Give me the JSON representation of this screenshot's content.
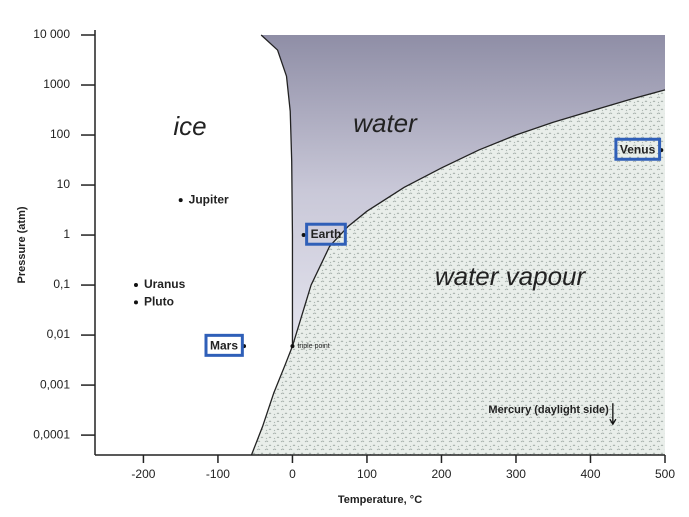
{
  "chart_data": {
    "type": "scatter",
    "x_label": "Temperature, °C",
    "y_label": "Pressure (atm)",
    "xlim": [
      -265,
      500
    ],
    "xticks": [
      -200,
      -100,
      0,
      100,
      200,
      300,
      400,
      500
    ],
    "ylim": [
      4e-05,
      10000
    ],
    "log_y": true,
    "yticks": [
      {
        "value": 10000,
        "label": "10 000"
      },
      1000,
      100,
      10,
      1,
      {
        "value": 0.1,
        "label": "0,1"
      },
      {
        "value": 0.01,
        "label": "0,01"
      },
      {
        "value": 0.001,
        "label": "0,001"
      },
      {
        "value": 0.0001,
        "label": "0,0001"
      }
    ],
    "regions": [
      "ice",
      "water",
      "water vapour"
    ],
    "points": [
      {
        "label": "Jupiter",
        "x": -150,
        "y": 5
      },
      {
        "label": "Uranus",
        "x": -210,
        "y": 0.1
      },
      {
        "label": "Pluto",
        "x": -210,
        "y": 0.045
      },
      {
        "label": "Mars",
        "x": -65,
        "y": 0.006
      },
      {
        "label": "Earth",
        "x": 15,
        "y": 1
      },
      {
        "label": "Venus",
        "x": 495,
        "y": 50
      },
      {
        "label": "triple point",
        "x": 0.01,
        "y": 0.006
      }
    ],
    "arrow": {
      "label": "Mercury (daylight side)",
      "x": 430,
      "y": 0.00025
    },
    "curves": [
      {
        "x": [
          -55,
          -40,
          -25,
          -10,
          0.01,
          25,
          50,
          75,
          100,
          150,
          200,
          250,
          300,
          350,
          400,
          450,
          500
        ],
        "y": [
          4e-05,
          0.00015,
          0.0007,
          0.0025,
          0.006,
          0.1,
          0.6,
          1.5,
          3,
          9,
          22,
          50,
          100,
          180,
          300,
          500,
          800
        ]
      },
      {
        "x": [
          0.01,
          0,
          -1,
          -3,
          -8,
          -20,
          -42
        ],
        "y": [
          0.006,
          1,
          30,
          300,
          1500,
          5000,
          10000
        ]
      }
    ]
  }
}
